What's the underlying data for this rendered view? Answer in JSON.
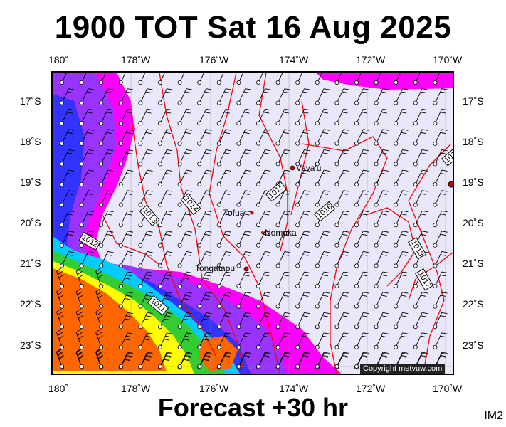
{
  "header": {
    "title": "1900 TOT Sat 16 Aug 2025"
  },
  "footer": {
    "forecast": "Forecast +30 hr",
    "image_code": "IM2"
  },
  "map": {
    "copyright": "Copyright metvuw.com",
    "lon_labels_top": [
      "180˚",
      "178˚W",
      "176˚W",
      "174˚W",
      "172˚W",
      "170˚W"
    ],
    "lon_labels_bottom": [
      "180˚",
      "178˚W",
      "176˚W",
      "174˚W",
      "172˚W",
      "170˚W"
    ],
    "lat_labels": [
      "17˚S",
      "18˚S",
      "19˚S",
      "20˚S",
      "21˚S",
      "22˚S",
      "23˚S"
    ],
    "places": [
      {
        "name": "Vava'u"
      },
      {
        "name": "Tofua"
      },
      {
        "name": "Nomuka"
      },
      {
        "name": "Tongatapu"
      }
    ],
    "isobar_labels": [
      "1015",
      "1016",
      "1014",
      "1013",
      "1012",
      "1011",
      "1018",
      "1017",
      "101"
    ],
    "colors": {
      "background": "#e8e8fa",
      "magenta": "#ff00ff",
      "purple": "#9933ff",
      "blue": "#3333ff",
      "cyan": "#00ccff",
      "green": "#33cc33",
      "yellow": "#ffff00",
      "orange": "#ff6600",
      "isobar": "#ff0000"
    }
  }
}
